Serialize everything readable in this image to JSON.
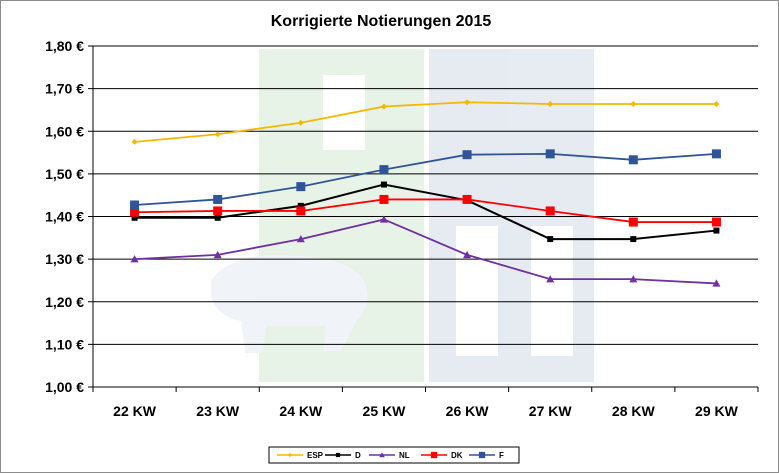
{
  "chart_data": {
    "type": "line",
    "title": "Korrigierte Notierungen 2015",
    "xlabel": "",
    "ylabel": "",
    "categories": [
      "22 KW",
      "23 KW",
      "24 KW",
      "25 KW",
      "26 KW",
      "27 KW",
      "28 KW",
      "29 KW"
    ],
    "ylim": [
      1.0,
      1.8
    ],
    "yticks": [
      "1,00 €",
      "1,10 €",
      "1,20 €",
      "1,30 €",
      "1,40 €",
      "1,50 €",
      "1,60 €",
      "1,70 €",
      "1,80 €"
    ],
    "grid": true,
    "legend_position": "bottom",
    "series": [
      {
        "name": "ESP",
        "color": "#f5b800",
        "marker": "diamond-small",
        "values": [
          1.575,
          1.593,
          1.62,
          1.658,
          1.668,
          1.664,
          1.664,
          1.664
        ]
      },
      {
        "name": "D",
        "color": "#000000",
        "marker": "square-small",
        "values": [
          1.397,
          1.397,
          1.425,
          1.475,
          1.438,
          1.347,
          1.347,
          1.367
        ]
      },
      {
        "name": "NL",
        "color": "#7030a0",
        "marker": "triangle",
        "values": [
          1.3,
          1.31,
          1.347,
          1.393,
          1.31,
          1.253,
          1.253,
          1.243
        ]
      },
      {
        "name": "DK",
        "color": "#ff0000",
        "marker": "square",
        "values": [
          1.41,
          1.413,
          1.413,
          1.44,
          1.44,
          1.413,
          1.387,
          1.387
        ]
      },
      {
        "name": "F",
        "color": "#2f5597",
        "marker": "square",
        "values": [
          1.427,
          1.44,
          1.47,
          1.51,
          1.545,
          1.547,
          1.533,
          1.547
        ]
      }
    ]
  }
}
